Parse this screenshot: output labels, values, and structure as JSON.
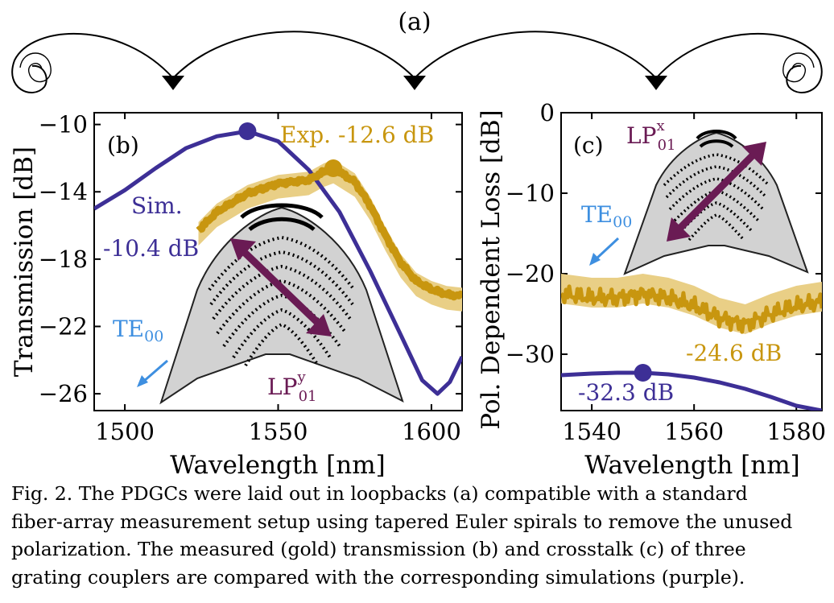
{
  "colors": {
    "sim": "#3d2f96",
    "exp": "#c8960f",
    "exp_band": "#e9cf86",
    "arrow_pol": "#6a1b54",
    "te_arrow": "#3e8fe0",
    "te_label": "#3e8fe0",
    "coupler_fill": "#d2d2d2"
  },
  "panel_a": {
    "label": "(a)"
  },
  "panel_b": {
    "label": "(b)",
    "ylabel": "Transmission [dB]",
    "xlabel": "Wavelength [nm]",
    "xticks": [
      "1500",
      "1550",
      "1600"
    ],
    "yticks": [
      "−10",
      "−14",
      "−18",
      "−22",
      "−26"
    ],
    "ann_exp": "Exp. -12.6 dB",
    "ann_sim_line1": "Sim.",
    "ann_sim_line2": "-10.4 dB",
    "te_label": "TE",
    "te_sub": "00",
    "lp_label": "LP",
    "lp_sup": "y",
    "lp_sub": "01"
  },
  "panel_c": {
    "label": "(c)",
    "ylabel": "Pol. Dependent Loss [dB]",
    "xlabel": "Wavelength [nm]",
    "xticks": [
      "1540",
      "1560",
      "1580"
    ],
    "yticks": [
      "0",
      "−10",
      "−20",
      "−30"
    ],
    "ann_exp": "-24.6 dB",
    "ann_sim": "-32.3 dB",
    "te_label": "TE",
    "te_sub": "00",
    "lp_label": "LP",
    "lp_sup": "x",
    "lp_sub": "01"
  },
  "chart_data": [
    {
      "type": "line",
      "panel": "(b)",
      "xlabel": "Wavelength [nm]",
      "ylabel": "Transmission [dB]",
      "xlim": [
        1490,
        1610
      ],
      "ylim": [
        -27,
        -9.3
      ],
      "series": [
        {
          "name": "Sim.",
          "x": [
            1490,
            1500,
            1510,
            1520,
            1530,
            1540,
            1550,
            1560,
            1570,
            1580,
            1590,
            1597,
            1602,
            1606,
            1610
          ],
          "y": [
            -15.0,
            -13.9,
            -12.6,
            -11.4,
            -10.7,
            -10.4,
            -11.0,
            -12.7,
            -15.2,
            -18.7,
            -22.5,
            -25.2,
            -26.0,
            -25.3,
            -23.8
          ]
        },
        {
          "name": "Exp.",
          "x": [
            1524,
            1530,
            1540,
            1550,
            1555,
            1560,
            1565,
            1568,
            1575,
            1580,
            1585,
            1590,
            1595,
            1600,
            1605,
            1610
          ],
          "y": [
            -16.3,
            -15.2,
            -14.1,
            -13.5,
            -13.4,
            -13.3,
            -12.8,
            -12.6,
            -13.4,
            -14.8,
            -16.6,
            -18.2,
            -19.3,
            -19.8,
            -20.1,
            -20.2
          ]
        }
      ],
      "markers": [
        {
          "series": "Sim.",
          "x": 1540,
          "y": -10.4
        },
        {
          "series": "Exp.",
          "x": 1568,
          "y": -12.6
        }
      ]
    },
    {
      "type": "line",
      "panel": "(c)",
      "xlabel": "Wavelength [nm]",
      "ylabel": "Pol. Dependent Loss [dB]",
      "xlim": [
        1534,
        1585
      ],
      "ylim": [
        -37,
        0
      ],
      "series": [
        {
          "name": "Sim.",
          "x": [
            1534,
            1540,
            1545,
            1550,
            1555,
            1560,
            1565,
            1570,
            1575,
            1580,
            1585
          ],
          "y": [
            -32.6,
            -32.4,
            -32.3,
            -32.3,
            -32.5,
            -32.9,
            -33.5,
            -34.3,
            -35.3,
            -36.4,
            -37.0
          ]
        },
        {
          "name": "Exp.",
          "x": [
            1534,
            1540,
            1545,
            1550,
            1555,
            1560,
            1565,
            1570,
            1575,
            1580,
            1585
          ],
          "y": [
            -22.5,
            -23.0,
            -23.0,
            -22.5,
            -23.0,
            -24.0,
            -25.5,
            -26.3,
            -25.0,
            -24.0,
            -23.5
          ]
        }
      ],
      "markers": [
        {
          "series": "Sim.",
          "x": 1550,
          "y": -32.3
        }
      ]
    }
  ],
  "caption": {
    "lines": [
      "Fig. 2. The PDGCs were laid out in loopbacks (a) compatible with a standard",
      "fiber-array measurement setup using tapered Euler spirals to remove the unused",
      "polarization. The measured (gold) transmission (b) and crosstalk (c) of three",
      "grating couplers are compared with the corresponding simulations (purple)."
    ]
  }
}
